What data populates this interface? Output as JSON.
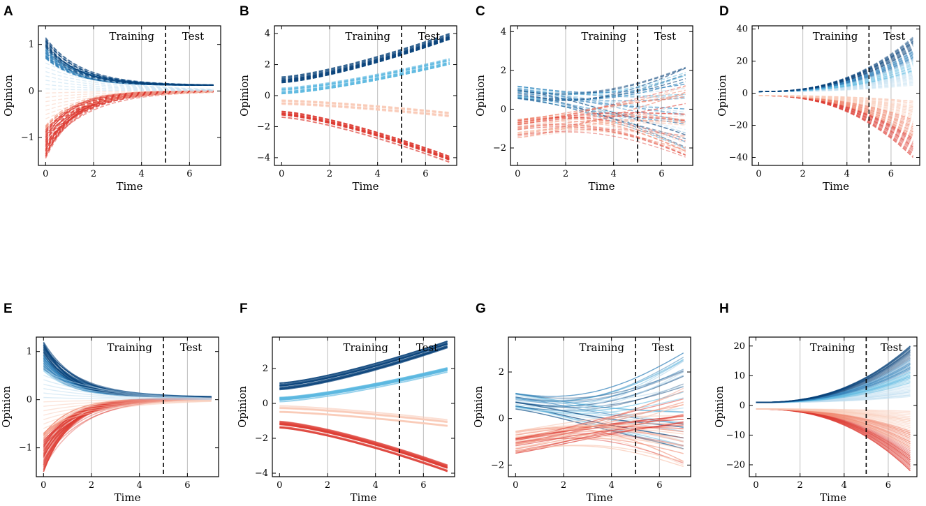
{
  "figure": {
    "shared": {
      "xlabel": "Time",
      "ylabel": "Opinion",
      "training_label": "Training",
      "test_label": "Test",
      "split_time": 5,
      "xlim": [
        -0.3,
        7.3
      ],
      "xticks": [
        0,
        2,
        4,
        6
      ],
      "gridlines_x": [
        2,
        4,
        6
      ],
      "colors": {
        "dark_blue": "#08427a",
        "mid_blue": "#2f7fb8",
        "light_blue": "#5cb8e0",
        "pale_blue": "#bcdcef",
        "pale_red": "#f9cbb8",
        "mid_red": "#f08870",
        "red": "#dd3b32",
        "axis": "#000000",
        "grid": "#bdbdbd"
      }
    }
  },
  "chart_data": [
    {
      "letter": "A",
      "type": "line",
      "style": "dashed",
      "pattern": "converge",
      "ylim": [
        -1.6,
        1.4
      ],
      "yticks": [
        -1,
        0,
        1
      ],
      "ytick_labels": [
        "−1",
        "0",
        "1"
      ],
      "xlabel": "Time",
      "ylabel": "Opinion",
      "series": [
        {
          "name": "top group",
          "start": [
            0.7,
            1.15
          ],
          "end": 0.12
        },
        {
          "name": "bottom group",
          "start": [
            -1.45,
            -0.75
          ],
          "end": 0.0
        }
      ]
    },
    {
      "letter": "B",
      "type": "line",
      "style": "dashed",
      "pattern": "bands",
      "ylim": [
        -4.5,
        4.5
      ],
      "yticks": [
        -4,
        -2,
        0,
        2,
        4
      ],
      "ytick_labels": [
        "−4",
        "−2",
        "0",
        "2",
        "4"
      ],
      "xlabel": "Time",
      "ylabel": "Opinion",
      "series": [
        {
          "name": "dark blue band",
          "start": 1.0,
          "end": 3.8
        },
        {
          "name": "light blue band",
          "start": 0.3,
          "end": 2.2
        },
        {
          "name": "pale red band",
          "start": -0.4,
          "end": -1.2
        },
        {
          "name": "red band",
          "start": -1.2,
          "end": -4.1
        }
      ]
    },
    {
      "letter": "C",
      "type": "line",
      "style": "dashed",
      "pattern": "fan",
      "ylim": [
        -2.9,
        4.3
      ],
      "yticks": [
        -2,
        0,
        2,
        4
      ],
      "ytick_labels": [
        "−2",
        "0",
        "2",
        "4"
      ],
      "xlabel": "Time",
      "ylabel": "Opinion",
      "series": [
        {
          "name": "top group",
          "start": [
            0.5,
            1.2
          ],
          "end": [
            -2.2,
            2.2
          ]
        },
        {
          "name": "bottom group",
          "start": [
            -1.5,
            -0.5
          ],
          "end": [
            -2.5,
            1.5
          ]
        }
      ]
    },
    {
      "letter": "D",
      "type": "line",
      "style": "dashed",
      "pattern": "diverge",
      "ylim": [
        -45,
        42
      ],
      "yticks": [
        -40,
        -20,
        0,
        20,
        40
      ],
      "ytick_labels": [
        "−40",
        "−20",
        "0",
        "20",
        "40"
      ],
      "xlabel": "Time",
      "ylabel": "Opinion",
      "series": [
        {
          "name": "top group",
          "start": 1.0,
          "end": [
            5,
            35
          ]
        },
        {
          "name": "bottom group",
          "start": -1.5,
          "end": [
            -40,
            -5
          ]
        }
      ]
    },
    {
      "letter": "E",
      "type": "line",
      "style": "solid",
      "pattern": "converge",
      "ylim": [
        -1.6,
        1.3
      ],
      "yticks": [
        -1,
        0,
        1
      ],
      "ytick_labels": [
        "−1",
        "0",
        "1"
      ],
      "xlabel": "Time",
      "ylabel": "Opinion",
      "series": [
        {
          "name": "top group",
          "start": [
            0.6,
            1.2
          ],
          "end": 0.05
        },
        {
          "name": "bottom group",
          "start": [
            -1.5,
            -0.7
          ],
          "end": 0.03
        }
      ]
    },
    {
      "letter": "F",
      "type": "line",
      "style": "solid",
      "pattern": "bands",
      "ylim": [
        -4.2,
        3.8
      ],
      "yticks": [
        -4,
        -2,
        0,
        2
      ],
      "ytick_labels": [
        "−4",
        "−2",
        "0",
        "2"
      ],
      "xlabel": "Time",
      "ylabel": "Opinion",
      "series": [
        {
          "name": "dark blue band",
          "start": 1.0,
          "end": 3.4
        },
        {
          "name": "light blue band",
          "start": 0.3,
          "end": 2.0
        },
        {
          "name": "pale red band",
          "start": -0.3,
          "end": -1.1
        },
        {
          "name": "red band",
          "start": -1.2,
          "end": -3.7
        }
      ]
    },
    {
      "letter": "G",
      "type": "line",
      "style": "solid",
      "pattern": "fan",
      "ylim": [
        -2.5,
        3.5
      ],
      "yticks": [
        -2,
        0,
        2
      ],
      "ytick_labels": [
        "−2",
        "0",
        "2"
      ],
      "xlabel": "Time",
      "ylabel": "Opinion",
      "series": [
        {
          "name": "top group",
          "start": [
            0.4,
            1.1
          ],
          "end": [
            -1.5,
            3.0
          ]
        },
        {
          "name": "bottom group",
          "start": [
            -1.5,
            -0.5
          ],
          "end": [
            -2.2,
            1.5
          ]
        }
      ]
    },
    {
      "letter": "H",
      "type": "line",
      "style": "solid",
      "pattern": "diverge",
      "ylim": [
        -24,
        23
      ],
      "yticks": [
        -20,
        -10,
        0,
        10,
        20
      ],
      "ytick_labels": [
        "−20",
        "−10",
        "0",
        "10",
        "20"
      ],
      "xlabel": "Time",
      "ylabel": "Opinion",
      "series": [
        {
          "name": "top group",
          "start": 1.0,
          "end": [
            3,
            20
          ]
        },
        {
          "name": "bottom group",
          "start": -1.2,
          "end": [
            -22,
            -2
          ]
        }
      ]
    }
  ]
}
